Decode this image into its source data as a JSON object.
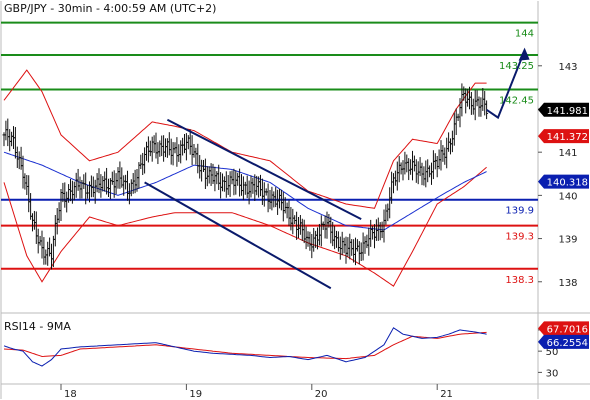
{
  "chart_data": [
    {
      "type": "candlestick",
      "title": "GBP/JPY - 30min - 4:00:59 AM (UTC+2)",
      "ylim": [
        137.3,
        144.5
      ],
      "y_ticks": [
        138,
        139,
        140,
        141,
        142,
        143
      ],
      "y_tick_labels": [
        "138",
        "139",
        "140",
        "141",
        "142",
        "143"
      ],
      "x_ticks": [
        {
          "label": "18",
          "bar": 30
        },
        {
          "label": "19",
          "bar": 96
        },
        {
          "label": "20",
          "bar": 162
        },
        {
          "label": "21",
          "bar": 228
        }
      ],
      "levels": [
        {
          "value": 144,
          "label": "144",
          "color": "#1a8c1a"
        },
        {
          "value": 143.25,
          "label": "143.25",
          "color": "#1a8c1a"
        },
        {
          "value": 142.45,
          "label": "142.45",
          "color": "#1a8c1a"
        },
        {
          "value": 139.9,
          "label": "139.9",
          "color": "#0a1fb0"
        },
        {
          "value": 139.3,
          "label": "139.3",
          "color": "#dd1111"
        },
        {
          "value": 138.3,
          "label": "138.3",
          "color": "#dd1111"
        }
      ],
      "price_tags": [
        {
          "value": 141.981,
          "label": "141.981",
          "color": "#000000"
        },
        {
          "value": 141.372,
          "label": "141.372",
          "color": "#dd1111"
        },
        {
          "value": 140.318,
          "label": "140.318",
          "color": "#0a1fb0"
        }
      ],
      "channel": {
        "color": "#0a1a6b",
        "upper": [
          [
            86,
            141.75
          ],
          [
            188,
            139.45
          ]
        ],
        "lower": [
          [
            74,
            140.3
          ],
          [
            172,
            137.85
          ]
        ]
      },
      "projection": {
        "color": "#0a1a6b",
        "points": [
          [
            260,
            141.8
          ],
          [
            274,
            143.35
          ]
        ]
      },
      "price_anchors": [
        [
          0,
          141.4
        ],
        [
          5,
          141.2
        ],
        [
          10,
          140.6
        ],
        [
          15,
          139.3
        ],
        [
          20,
          138.8
        ],
        [
          25,
          138.6
        ],
        [
          30,
          140.0
        ],
        [
          40,
          140.2
        ],
        [
          50,
          140.2
        ],
        [
          60,
          140.4
        ],
        [
          65,
          140.1
        ],
        [
          70,
          140.5
        ],
        [
          78,
          141.2
        ],
        [
          88,
          141.0
        ],
        [
          96,
          141.2
        ],
        [
          108,
          140.4
        ],
        [
          118,
          140.3
        ],
        [
          130,
          140.2
        ],
        [
          140,
          140.0
        ],
        [
          150,
          139.6
        ],
        [
          160,
          138.9
        ],
        [
          170,
          139.3
        ],
        [
          180,
          138.7
        ],
        [
          190,
          138.85
        ],
        [
          200,
          139.4
        ],
        [
          205,
          140.3
        ],
        [
          210,
          140.8
        ],
        [
          218,
          140.5
        ],
        [
          228,
          140.7
        ],
        [
          234,
          141.2
        ],
        [
          238,
          141.7
        ],
        [
          242,
          142.3
        ],
        [
          248,
          142.15
        ],
        [
          254,
          141.98
        ]
      ],
      "bands_anchors": {
        "middle": [
          [
            0,
            141.0
          ],
          [
            20,
            140.7
          ],
          [
            40,
            140.3
          ],
          [
            60,
            140.0
          ],
          [
            80,
            140.3
          ],
          [
            100,
            140.7
          ],
          [
            120,
            140.6
          ],
          [
            140,
            140.3
          ],
          [
            160,
            139.7
          ],
          [
            180,
            139.3
          ],
          [
            200,
            139.2
          ],
          [
            215,
            139.6
          ],
          [
            230,
            140.0
          ],
          [
            242,
            140.3
          ],
          [
            254,
            140.55
          ]
        ],
        "upper": [
          [
            0,
            142.2
          ],
          [
            12,
            142.9
          ],
          [
            20,
            142.4
          ],
          [
            30,
            141.4
          ],
          [
            45,
            140.8
          ],
          [
            60,
            141.0
          ],
          [
            78,
            141.7
          ],
          [
            90,
            141.6
          ],
          [
            100,
            141.5
          ],
          [
            120,
            141.0
          ],
          [
            140,
            140.8
          ],
          [
            160,
            140.1
          ],
          [
            180,
            139.8
          ],
          [
            195,
            139.7
          ],
          [
            205,
            140.8
          ],
          [
            215,
            141.3
          ],
          [
            228,
            141.2
          ],
          [
            238,
            142.0
          ],
          [
            248,
            142.6
          ],
          [
            254,
            142.6
          ]
        ],
        "lower": [
          [
            0,
            140.3
          ],
          [
            12,
            138.6
          ],
          [
            20,
            138.0
          ],
          [
            30,
            138.7
          ],
          [
            45,
            139.5
          ],
          [
            60,
            139.3
          ],
          [
            78,
            139.5
          ],
          [
            90,
            139.6
          ],
          [
            100,
            139.6
          ],
          [
            120,
            139.6
          ],
          [
            140,
            139.3
          ],
          [
            160,
            138.9
          ],
          [
            180,
            138.6
          ],
          [
            195,
            138.2
          ],
          [
            205,
            137.9
          ],
          [
            215,
            138.7
          ],
          [
            228,
            139.8
          ],
          [
            242,
            140.2
          ],
          [
            254,
            140.65
          ]
        ]
      }
    },
    {
      "type": "line",
      "title": "RSI14 - 9MA",
      "ylim": [
        20,
        85
      ],
      "y_ticks": [
        30,
        50,
        70
      ],
      "y_tick_labels": [
        "30",
        "50",
        "70"
      ],
      "value_tags": [
        {
          "value": 67.7016,
          "label": "67.7016",
          "color": "#dd1111"
        },
        {
          "value": 66.2554,
          "label": "66.2554",
          "color": "#0a1fb0"
        }
      ],
      "series_anchors": {
        "rsi": [
          [
            0,
            55
          ],
          [
            5,
            52
          ],
          [
            10,
            50
          ],
          [
            15,
            40
          ],
          [
            20,
            36
          ],
          [
            25,
            42
          ],
          [
            30,
            52
          ],
          [
            40,
            54
          ],
          [
            50,
            55
          ],
          [
            60,
            56
          ],
          [
            70,
            57
          ],
          [
            80,
            58
          ],
          [
            90,
            54
          ],
          [
            100,
            50
          ],
          [
            110,
            48
          ],
          [
            120,
            47
          ],
          [
            130,
            46
          ],
          [
            140,
            44
          ],
          [
            150,
            45
          ],
          [
            160,
            42
          ],
          [
            170,
            46
          ],
          [
            180,
            40
          ],
          [
            190,
            44
          ],
          [
            200,
            56
          ],
          [
            205,
            72
          ],
          [
            210,
            66
          ],
          [
            220,
            62
          ],
          [
            228,
            63
          ],
          [
            234,
            66
          ],
          [
            240,
            70
          ],
          [
            248,
            68
          ],
          [
            254,
            66
          ]
        ],
        "ma": [
          [
            0,
            52
          ],
          [
            10,
            51
          ],
          [
            20,
            45
          ],
          [
            30,
            46
          ],
          [
            40,
            52
          ],
          [
            60,
            54
          ],
          [
            80,
            56
          ],
          [
            100,
            52
          ],
          [
            120,
            48
          ],
          [
            140,
            46
          ],
          [
            160,
            44
          ],
          [
            180,
            43
          ],
          [
            195,
            46
          ],
          [
            205,
            56
          ],
          [
            215,
            64
          ],
          [
            228,
            62
          ],
          [
            240,
            66
          ],
          [
            254,
            67.7
          ]
        ]
      }
    }
  ]
}
